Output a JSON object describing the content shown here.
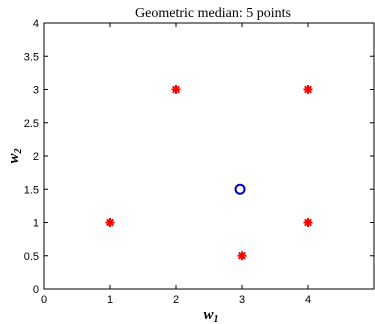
{
  "chart_data": {
    "type": "scatter",
    "title": "Geometric median: 5 points",
    "xlabel": "w",
    "xlabel_sub": "1",
    "ylabel": "w",
    "ylabel_sub": "2",
    "xlim": [
      0,
      5
    ],
    "ylim": [
      0,
      4
    ],
    "xticks": [
      0,
      1,
      2,
      3,
      4
    ],
    "yticks": [
      0,
      0.5,
      1,
      1.5,
      2,
      2.5,
      3,
      3.5,
      4
    ],
    "xtick_labels": [
      "0",
      "1",
      "2",
      "3",
      "4"
    ],
    "ytick_labels": [
      "0",
      "0.5",
      "1",
      "1.5",
      "2",
      "2.5",
      "3",
      "3.5",
      "4"
    ],
    "grid": false,
    "series": [
      {
        "marker": "asterisk",
        "color": "#ff0000",
        "points": [
          [
            1,
            1
          ],
          [
            2,
            3
          ],
          [
            3,
            0.5
          ],
          [
            4,
            3
          ],
          [
            4,
            1
          ]
        ]
      },
      {
        "marker": "circle",
        "color": "#0000cc",
        "points": [
          [
            2.97,
            1.5
          ]
        ]
      }
    ]
  }
}
